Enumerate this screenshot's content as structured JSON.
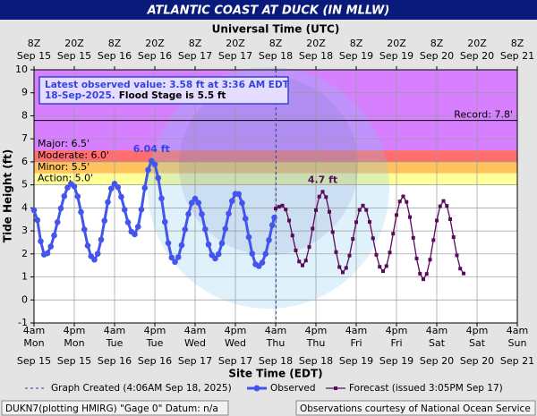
{
  "chart_data": {
    "type": "line",
    "title": "ATLANTIC COAST AT DUCK (IN MLLW)",
    "x2_label": "Universal Time (UTC)",
    "x_label": "Site Time (EDT)",
    "y_label": "Tide Height (ft)",
    "xlim": [
      0,
      144
    ],
    "ylim": [
      -1,
      10
    ],
    "yticks": [
      -1,
      0,
      1,
      2,
      3,
      4,
      5,
      6,
      7,
      8,
      9,
      10
    ],
    "grid": true,
    "xticks": [
      {
        "value": 0,
        "label": [
          "4am",
          "Mon",
          "Sep 15"
        ]
      },
      {
        "value": 12,
        "label": [
          "4pm",
          "Mon",
          "Sep 15"
        ]
      },
      {
        "value": 24,
        "label": [
          "4am",
          "Tue",
          "Sep 16"
        ]
      },
      {
        "value": 36,
        "label": [
          "4pm",
          "Tue",
          "Sep 16"
        ]
      },
      {
        "value": 48,
        "label": [
          "4am",
          "Wed",
          "Sep 17"
        ]
      },
      {
        "value": 60,
        "label": [
          "4pm",
          "Wed",
          "Sep 17"
        ]
      },
      {
        "value": 72,
        "label": [
          "4am",
          "Thu",
          "Sep 18"
        ]
      },
      {
        "value": 84,
        "label": [
          "4pm",
          "Thu",
          "Sep 18"
        ]
      },
      {
        "value": 96,
        "label": [
          "4am",
          "Fri",
          "Sep 19"
        ]
      },
      {
        "value": 108,
        "label": [
          "4pm",
          "Fri",
          "Sep 19"
        ]
      },
      {
        "value": 120,
        "label": [
          "4am",
          "Sat",
          "Sep 20"
        ]
      },
      {
        "value": 132,
        "label": [
          "4pm",
          "Sat",
          "Sep 20"
        ]
      },
      {
        "value": 144,
        "label": [
          "4am",
          "Sun",
          "Sep 21"
        ]
      }
    ],
    "x2ticks": [
      {
        "value": 0,
        "label": [
          "8Z",
          "Sep 15"
        ]
      },
      {
        "value": 12,
        "label": [
          "20Z",
          "Sep 15"
        ]
      },
      {
        "value": 24,
        "label": [
          "8Z",
          "Sep 16"
        ]
      },
      {
        "value": 36,
        "label": [
          "20Z",
          "Sep 16"
        ]
      },
      {
        "value": 48,
        "label": [
          "8Z",
          "Sep 17"
        ]
      },
      {
        "value": 60,
        "label": [
          "20Z",
          "Sep 17"
        ]
      },
      {
        "value": 72,
        "label": [
          "8Z",
          "Sep 18"
        ]
      },
      {
        "value": 84,
        "label": [
          "20Z",
          "Sep 18"
        ]
      },
      {
        "value": 96,
        "label": [
          "8Z",
          "Sep 19"
        ]
      },
      {
        "value": 108,
        "label": [
          "20Z",
          "Sep 19"
        ]
      },
      {
        "value": 120,
        "label": [
          "8Z",
          "Sep 20"
        ]
      },
      {
        "value": 132,
        "label": [
          "20Z",
          "Sep 20"
        ]
      },
      {
        "value": 144,
        "label": [
          "8Z",
          "Sep 21"
        ]
      }
    ],
    "stages": [
      {
        "label": "Action: 5.0'",
        "value": 5.0,
        "color": "#ffff99"
      },
      {
        "label": "Minor: 5.5'",
        "value": 5.5,
        "color": "#ffc45e"
      },
      {
        "label": "Moderate: 6.0'",
        "value": 6.0,
        "color": "#ff6e6e"
      },
      {
        "label": "Major: 6.5'",
        "value": 6.5,
        "color": "#d680ff"
      }
    ],
    "record": {
      "label": "Record: 7.8'",
      "value": 7.8
    },
    "graph_created": {
      "label": "Graph Created (4:06AM Sep 18, 2025)",
      "x": 72.1
    },
    "annotations": [
      {
        "text": "6.04 ft",
        "x": 35,
        "y": 6.04,
        "color": "#3344dd"
      },
      {
        "text": "4.7 ft",
        "x": 86,
        "y": 4.7,
        "color": "#5a1060"
      }
    ],
    "info_box": {
      "line1": "Latest observed value: 3.58 ft at 3:36 AM EDT",
      "date": "18-Sep-2025.",
      "flood": "Flood Stage is 5.5 ft"
    },
    "series": [
      {
        "name": "Observed",
        "color": "#4455ee",
        "marker": "circle",
        "x": [
          0,
          1,
          2,
          3,
          4,
          5,
          6,
          7,
          8,
          9,
          10,
          11,
          12,
          13,
          14,
          15,
          16,
          17,
          18,
          19,
          20,
          21,
          22,
          23,
          24,
          25,
          26,
          27,
          28,
          29,
          30,
          31,
          32,
          33,
          34,
          35,
          36,
          37,
          38,
          39,
          40,
          41,
          42,
          43,
          44,
          45,
          46,
          47,
          48,
          49,
          50,
          51,
          52,
          53,
          54,
          55,
          56,
          57,
          58,
          59,
          60,
          61,
          62,
          63,
          64,
          65,
          66,
          67,
          68,
          69,
          70,
          71,
          71.6
        ],
        "values": [
          3.9,
          3.47,
          2.55,
          1.97,
          2.03,
          2.32,
          2.8,
          3.38,
          3.98,
          4.51,
          4.88,
          5.04,
          4.93,
          4.5,
          3.82,
          3.06,
          2.36,
          1.9,
          1.75,
          2.01,
          2.62,
          3.44,
          4.25,
          4.84,
          5.05,
          4.9,
          4.48,
          3.92,
          3.37,
          2.97,
          2.85,
          3.18,
          3.93,
          4.87,
          5.65,
          6.04,
          5.89,
          5.3,
          4.41,
          3.39,
          2.47,
          1.84,
          1.65,
          1.86,
          2.38,
          3.06,
          3.73,
          4.22,
          4.4,
          4.22,
          3.73,
          3.07,
          2.41,
          1.95,
          1.8,
          1.99,
          2.46,
          3.09,
          3.75,
          4.3,
          4.61,
          4.6,
          4.21,
          3.53,
          2.73,
          2.01,
          1.55,
          1.47,
          1.62,
          2.0,
          2.6,
          3.25,
          3.58
        ]
      },
      {
        "name": "Forecast (issued 3:05PM Sep 17)",
        "color": "#5a0a5a",
        "marker": "square",
        "x": [
          72,
          73,
          74,
          75,
          76,
          77,
          78,
          79,
          80,
          81,
          82,
          83,
          84,
          85,
          86,
          87,
          88,
          89,
          90,
          91,
          92,
          93,
          94,
          95,
          96,
          97,
          98,
          99,
          100,
          101,
          102,
          103,
          104,
          105,
          106,
          107,
          108,
          109,
          110,
          111,
          112,
          113,
          114,
          115,
          116,
          117,
          118,
          119,
          120,
          121,
          122,
          123,
          124,
          125,
          126,
          127,
          128
        ],
        "values": [
          3.97,
          4.05,
          4.1,
          3.93,
          3.45,
          2.8,
          2.15,
          1.67,
          1.5,
          1.71,
          2.3,
          3.1,
          3.9,
          4.49,
          4.7,
          4.47,
          3.83,
          2.95,
          2.08,
          1.43,
          1.2,
          1.39,
          1.93,
          2.65,
          3.38,
          3.91,
          4.1,
          3.91,
          3.39,
          2.68,
          1.96,
          1.44,
          1.25,
          1.47,
          2.06,
          2.88,
          3.69,
          4.28,
          4.5,
          4.26,
          3.6,
          2.7,
          1.8,
          1.14,
          0.9,
          1.13,
          1.75,
          2.6,
          3.45,
          4.07,
          4.3,
          4.09,
          3.51,
          2.73,
          1.94,
          1.36,
          1.15
        ]
      }
    ],
    "footer_left": "DUKN7(plotting HMIRG) \"Gage 0\" Datum: n/a",
    "footer_right": "Observations courtesy of National Ocean Service"
  }
}
